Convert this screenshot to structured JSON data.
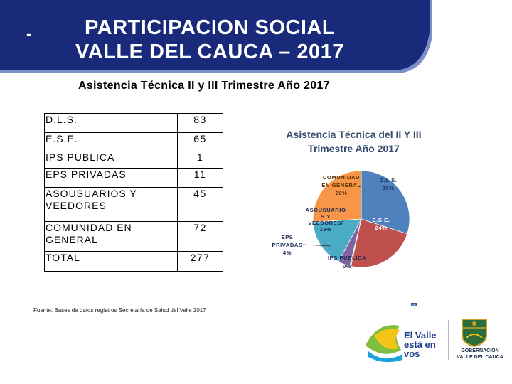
{
  "header": {
    "dash": "-",
    "title_line1": "PARTICIPACION SOCIAL",
    "title_line2": "VALLE DEL CAUCA – 2017",
    "banner_color": "#1a2a7a",
    "accent_color": "#7d8fc7"
  },
  "subtitle": "Asistencia Técnica II y III Trimestre Año 2017",
  "table": {
    "rows": [
      {
        "label": "D.L.S.",
        "value": "83"
      },
      {
        "label": "E.S.E.",
        "value": "65"
      },
      {
        "label": "IPS PUBLICA",
        "value": "1"
      },
      {
        "label": "EPS PRIVADAS",
        "value": "11"
      },
      {
        "label": "ASOUSUARIOS Y VEEDORES",
        "value": "45"
      },
      {
        "label": "COMUNIDAD EN GENERAL",
        "value": "72"
      },
      {
        "label": "TOTAL",
        "value": "277"
      }
    ]
  },
  "source": "Fuente: Bases de datos registros Secretaría de Salud del Valle 2017",
  "chart_data": {
    "type": "pie",
    "title_line1": "Asistencia Técnica del II Y III",
    "title_line2": "Trimestre Año 2017",
    "slices": [
      {
        "name": "D.L.S.",
        "value": 83,
        "percent": "30%",
        "color": "#4f81bd"
      },
      {
        "name": "E.S.E.",
        "value": 65,
        "percent": "24%",
        "color": "#c0504d"
      },
      {
        "name": "IPS PUBLICA",
        "value": 1,
        "percent": "0%",
        "color": "#9bbb59"
      },
      {
        "name": "EPS PRIVADAS",
        "value": 11,
        "percent": "4%",
        "color": "#8064a2"
      },
      {
        "name": "ASOUSUARIOS Y VEEDORES/",
        "value": 45,
        "percent": "16%",
        "color": "#4bacc6"
      },
      {
        "name": "COMUNIDAD EN GENERAL",
        "value": 72,
        "percent": "26%",
        "color": "#f79646"
      }
    ]
  },
  "logos": {
    "valle_line1": "El Valle",
    "valle_line2": "está en",
    "valle_line3": "vos",
    "gob_line1": "GOBERNACIÓN",
    "gob_line2": "VALLE DEL CAUCA"
  }
}
